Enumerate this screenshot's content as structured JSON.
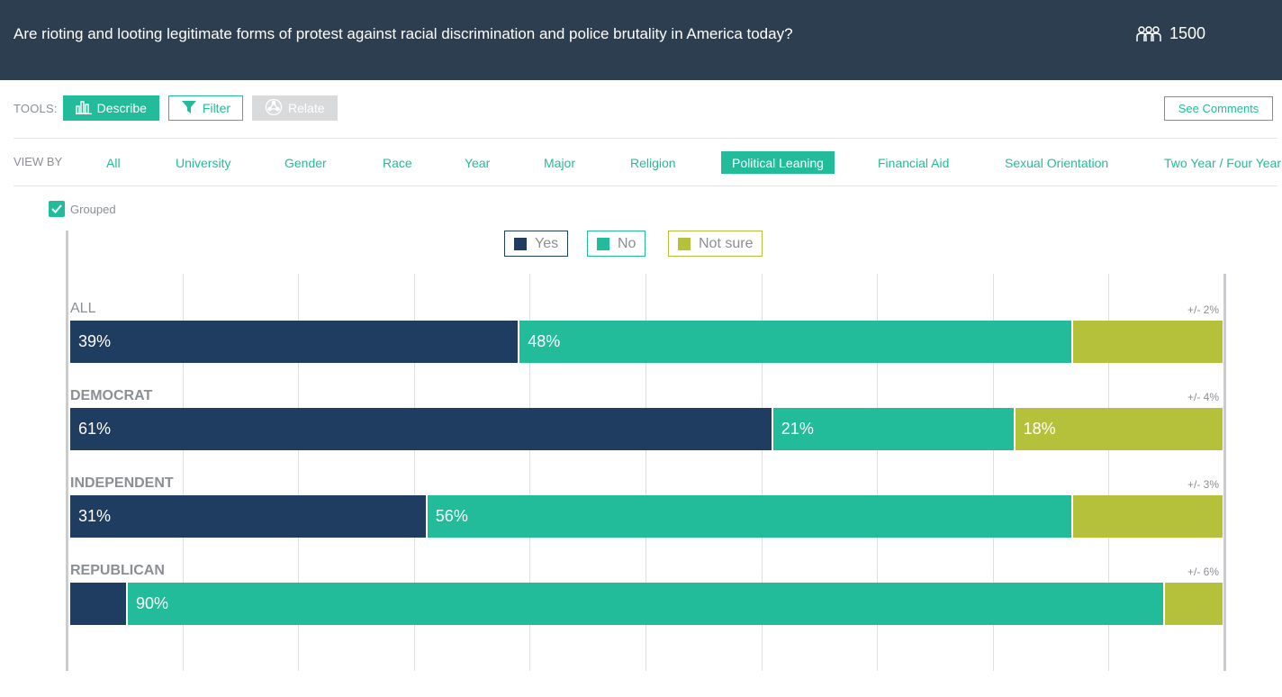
{
  "header": {
    "question": "Are rioting and looting legitimate forms of protest against racial discrimination and police brutality in America today?",
    "respondent_count": "1500",
    "respondent_icon": "people-group-icon"
  },
  "tools": {
    "label": "TOOLS:",
    "describe": "Describe",
    "filter": "Filter",
    "relate": "Relate",
    "see_comments": "See Comments"
  },
  "view_by": {
    "label": "VIEW BY",
    "options": [
      "All",
      "University",
      "Gender",
      "Race",
      "Year",
      "Major",
      "Religion",
      "Political Leaning",
      "Financial Aid",
      "Sexual Orientation",
      "Two Year / Four Year"
    ],
    "selected": "Political Leaning"
  },
  "grouped": {
    "label": "Grouped",
    "checked": true
  },
  "colors": {
    "yes": "#1f3d60",
    "no": "#22bc9b",
    "not_sure": "#b5c13a",
    "accent": "#22bc9b",
    "header_bg": "#2d3e50"
  },
  "chart_data": {
    "type": "bar",
    "orientation": "horizontal",
    "stacked": true,
    "series_names": [
      "Yes",
      "No",
      "Not sure"
    ],
    "categories": [
      "ALL",
      "DEMOCRAT",
      "INDEPENDENT",
      "REPUBLICAN"
    ],
    "series": [
      {
        "name": "Yes",
        "values": [
          39,
          61,
          31,
          5
        ]
      },
      {
        "name": "No",
        "values": [
          48,
          21,
          56,
          90
        ]
      },
      {
        "name": "Not sure",
        "values": [
          13,
          18,
          13,
          5
        ]
      }
    ],
    "data_labels": [
      [
        "39%",
        "48%",
        ""
      ],
      [
        "61%",
        "21%",
        "18%"
      ],
      [
        "31%",
        "56%",
        ""
      ],
      [
        "",
        "90%",
        ""
      ]
    ],
    "margins_of_error": [
      "+/- 2%",
      "+/- 4%",
      "+/- 3%",
      "+/- 6%"
    ],
    "xlim": [
      0,
      100
    ],
    "grid": true,
    "legend_position": "top-center"
  }
}
